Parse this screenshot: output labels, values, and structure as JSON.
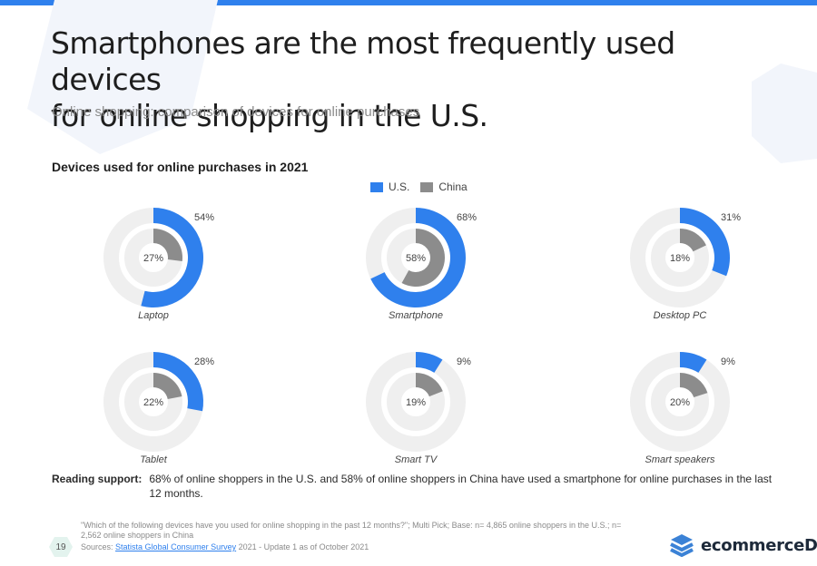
{
  "page": {
    "title_line1": "Smartphones are the most frequently used devices",
    "title_line2": "for online shopping in the U.S.",
    "subtitle": "Online shopping: comparison of devices for online purchases",
    "reading_support_label": "Reading support:",
    "reading_support_text": "68% of online shoppers in the U.S. and 58% of online shoppers in China have used a smartphone for online purchases in the last 12 months.",
    "footnote": "\"Which of the following devices have you used for online shopping in the past 12 months?\"; Multi Pick; Base: n= 4,865 online shoppers in the U.S.; n= 2,562 online shoppers in China",
    "sources_prefix": "Sources:",
    "sources_link": "Statista Global Consumer Survey",
    "sources_suffix": "2021 - Update 1 as of October 2021",
    "page_number": "19",
    "brand": "ecommerceDB",
    "brand_icon": "stacked-chevrons-logo-icon"
  },
  "colors": {
    "us": "#2f80ed",
    "china": "#8c8c8c",
    "track": "#efefef",
    "accent_bar": "#2f80ed"
  },
  "chart_data": {
    "type": "donut",
    "title": "Devices used for online purchases in 2021",
    "legend_placement": "top-center",
    "series": [
      {
        "name": "U.S.",
        "color": "#2f80ed",
        "values": [
          54,
          68,
          31,
          28,
          9,
          9
        ]
      },
      {
        "name": "China",
        "color": "#8c8c8c",
        "values": [
          27,
          58,
          18,
          22,
          19,
          20
        ]
      }
    ],
    "categories": [
      "Laptop",
      "Smartphone",
      "Desktop PC",
      "Tablet",
      "Smart TV",
      "Smart speakers"
    ],
    "outer_labels": [
      "54%",
      "68%",
      "31%",
      "28%",
      "9%",
      "9%"
    ],
    "inner_labels": [
      "27%",
      "58%",
      "18%",
      "22%",
      "19%",
      "20%"
    ],
    "unit": "%",
    "max": 100
  }
}
